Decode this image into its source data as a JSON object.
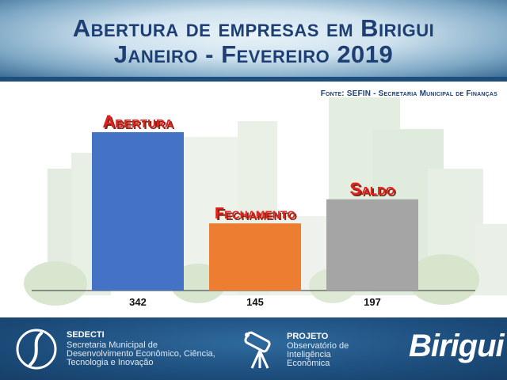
{
  "header": {
    "title_line1": "Abertura de empresas em Birigui",
    "title_line2": "Janeiro - Fevereiro 2019"
  },
  "source": "Fonte: SEFIN - Secretaria Municipal de Finanças",
  "colors": {
    "abertura": "#4472c4",
    "fechamento": "#ed7d31",
    "saldo": "#a5a5a5",
    "category_label": "#e3201b",
    "title": "#1d3f73",
    "footer_bg": "#1d4e7d"
  },
  "chart_data": {
    "type": "bar",
    "categories": [
      "Abertura",
      "Fechamento",
      "Saldo"
    ],
    "values": [
      342,
      145,
      197
    ],
    "value_labels": [
      "342",
      "145",
      "197"
    ],
    "ylim": [
      0,
      400
    ],
    "grid": false,
    "legend": "none"
  },
  "footer": {
    "sedecti_title": "SEDECTI",
    "sedecti_desc": "Secretaria Municipal de Desenvolvimento Econômico, Ciência, Tecnologia e Inovação",
    "projeto_title": "PROJETO",
    "projeto_desc": "Observatório de Inteligência Econômica",
    "brand": "Birigui",
    "icons": [
      "sedecti-logo-icon",
      "telescope-icon",
      "birigui-logo-icon"
    ]
  }
}
